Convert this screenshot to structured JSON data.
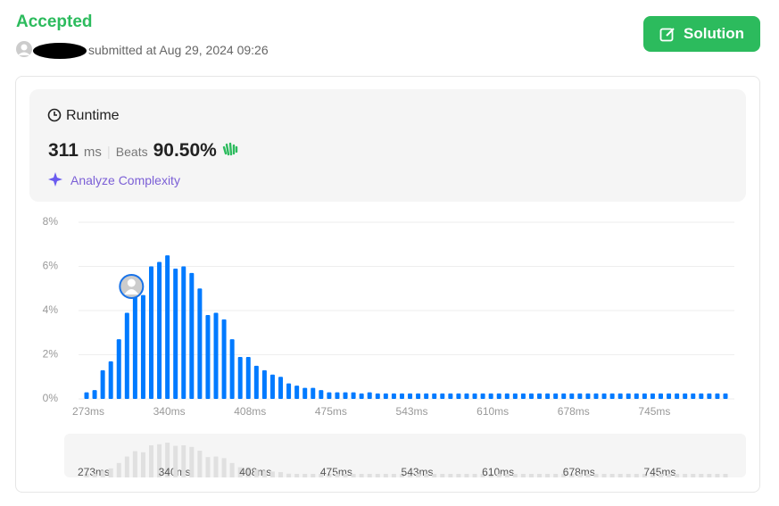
{
  "header": {
    "status": "Accepted",
    "submitted": "submitted at Aug 29, 2024 09:26",
    "button": "Solution"
  },
  "runtime": {
    "title": "Runtime",
    "value": "311",
    "unit": "ms",
    "beats_label": "Beats",
    "beats": "90.50%",
    "analyze": "Analyze Complexity"
  },
  "chart_data": {
    "type": "bar",
    "color": "#007aff",
    "mini_color": "#e0e0e0",
    "grid": true,
    "categories": [
      "273ms",
      null,
      null,
      null,
      null,
      null,
      null,
      null,
      null,
      null,
      "340ms",
      null,
      null,
      null,
      null,
      null,
      null,
      null,
      null,
      null,
      "408ms",
      null,
      null,
      null,
      null,
      null,
      null,
      null,
      null,
      null,
      "475ms",
      null,
      null,
      null,
      null,
      null,
      null,
      null,
      null,
      null,
      "543ms",
      null,
      null,
      null,
      null,
      null,
      null,
      null,
      null,
      null,
      "610ms",
      null,
      null,
      null,
      null,
      null,
      null,
      null,
      null,
      null,
      "678ms",
      null,
      null,
      null,
      null,
      null,
      null,
      null,
      null,
      null,
      "745ms",
      null,
      null,
      null,
      null,
      null,
      null,
      null,
      null,
      null
    ],
    "values": [
      0.3,
      0.4,
      1.3,
      1.7,
      2.7,
      3.9,
      4.9,
      4.7,
      6.0,
      6.2,
      6.5,
      5.9,
      6.0,
      5.7,
      5.0,
      3.8,
      3.9,
      3.6,
      2.7,
      1.9,
      1.9,
      1.5,
      1.3,
      1.1,
      1.0,
      0.7,
      0.6,
      0.5,
      0.5,
      0.4,
      0.3,
      0.3,
      0.3,
      0.3,
      0.25,
      0.3,
      0.25,
      0.25,
      0.25,
      0.25,
      0.25,
      0.25,
      0.25,
      0.25,
      0.25,
      0.25,
      0.25,
      0.25,
      0.25,
      0.25,
      0.25,
      0.25,
      0.25,
      0.25,
      0.25,
      0.25,
      0.25,
      0.25,
      0.25,
      0.25,
      0.25,
      0.25,
      0.25,
      0.25,
      0.25,
      0.25,
      0.25,
      0.25,
      0.25,
      0.25,
      0.25,
      0.25,
      0.25,
      0.25,
      0.25,
      0.25,
      0.25,
      0.25,
      0.25,
      0.25
    ],
    "ylim": [
      0,
      8
    ],
    "yticks": [
      {
        "value": 0,
        "label": "0%"
      },
      {
        "value": 2,
        "label": "2%"
      },
      {
        "value": 4,
        "label": "4%"
      },
      {
        "value": 6,
        "label": "6%"
      },
      {
        "value": 8,
        "label": "8%"
      }
    ]
  }
}
